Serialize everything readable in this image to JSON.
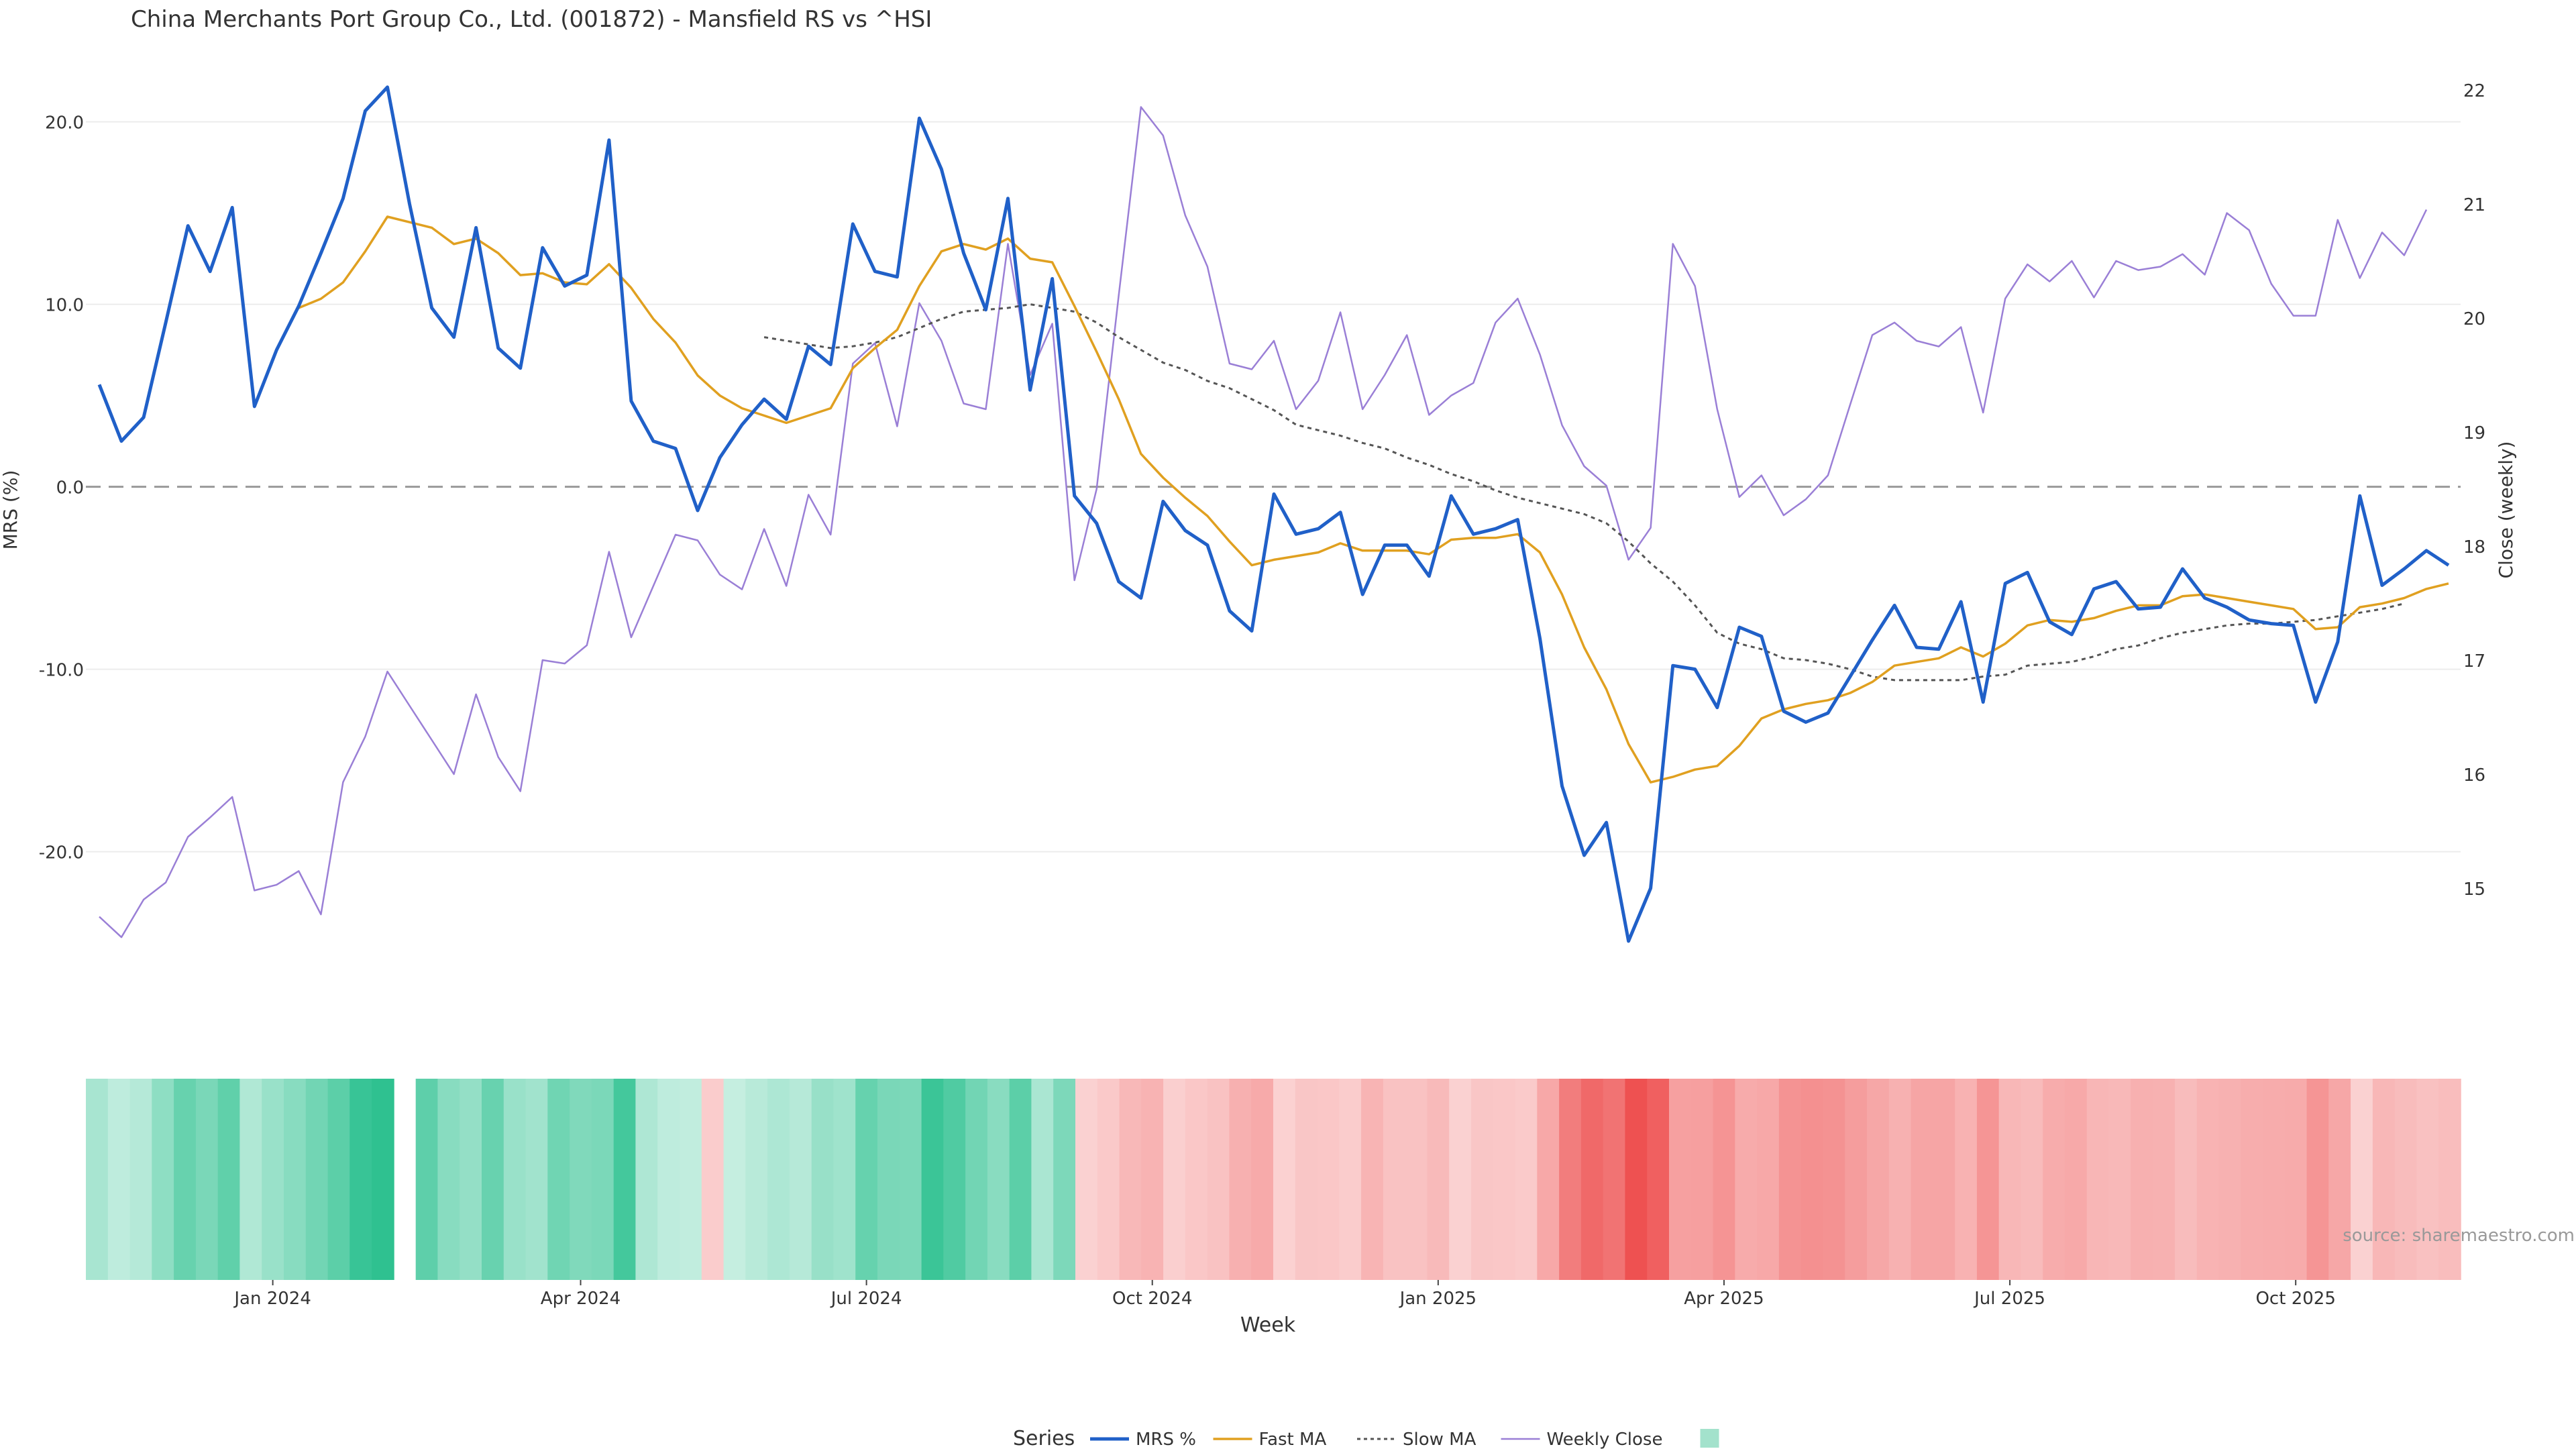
{
  "title": "China Merchants Port Group Co., Ltd. (001872) - Mansfield RS vs ^HSI",
  "source": "source: sharemaestro.com",
  "chart_data": {
    "type": "line",
    "title": "China Merchants Port Group Co., Ltd. (001872) - Mansfield RS vs ^HSI",
    "xlabel": "Week",
    "ylabel_left": "MRS (%)",
    "ylabel_right": "Close (weekly)",
    "ylim_left": [
      -27,
      23
    ],
    "ylim_right": [
      14.2,
      22.2
    ],
    "yticks_left": [
      "20.0",
      "10.0",
      "0.0",
      "-10.0",
      "-20.0"
    ],
    "yticks_left_values": [
      20,
      10,
      0,
      -10,
      -20
    ],
    "yticks_right": [
      "22",
      "21",
      "20",
      "19",
      "18",
      "17",
      "16",
      "15"
    ],
    "yticks_right_values": [
      22,
      21,
      20,
      19,
      18,
      17,
      16,
      15
    ],
    "xticks": [
      "Jan 2024",
      "Apr 2024",
      "Jul 2024",
      "Oct 2024",
      "Jan 2025",
      "Apr 2025",
      "Jul 2025",
      "Oct 2025"
    ],
    "xtick_weeks": [
      8,
      21,
      34,
      47,
      60,
      73,
      86,
      99
    ],
    "zero_line": true,
    "series": [
      {
        "name": "MRS %",
        "color": "#2060c8",
        "values": [
          5.6,
          2.5,
          3.8,
          9.0,
          14.3,
          11.8,
          15.3,
          4.4,
          7.5,
          9.9,
          12.8,
          15.8,
          20.6,
          21.9,
          15.5,
          9.8,
          8.2,
          14.2,
          7.6,
          6.5,
          13.1,
          11.0,
          11.6,
          19.0,
          4.7,
          2.5,
          2.1,
          -1.3,
          1.6,
          3.4,
          4.8,
          3.7,
          7.7,
          6.7,
          14.4,
          11.8,
          11.5,
          20.2,
          17.4,
          12.8,
          9.7,
          15.8,
          5.3,
          11.4,
          -0.5,
          -2.0,
          -5.2,
          -6.1,
          -0.8,
          -2.4,
          -3.2,
          -6.8,
          -7.9,
          -0.4,
          -2.6,
          -2.3,
          -1.4,
          -5.9,
          -3.2,
          -3.2,
          -4.9,
          -0.5,
          -2.6,
          -2.3,
          -1.8,
          -8.3,
          -16.4,
          -20.2,
          -18.4,
          -24.9,
          -22.0,
          -9.8,
          -10.0,
          -12.1,
          -7.7,
          -8.2,
          -12.3,
          -12.9,
          -12.4,
          -10.4,
          -8.4,
          -6.5,
          -8.8,
          -8.9,
          -6.3,
          -11.8,
          -5.3,
          -4.7,
          -7.4,
          -8.1,
          -5.6,
          -5.2,
          -6.7,
          -6.6,
          -4.5,
          -6.1,
          -6.6,
          -7.3,
          -7.5,
          -7.6,
          -11.8,
          -8.5,
          -0.5,
          -5.4,
          -4.5,
          -3.5,
          -4.3
        ]
      },
      {
        "name": "Fast MA",
        "color": "#e0a020",
        "start": 9,
        "values": [
          9.8,
          10.3,
          11.2,
          12.9,
          14.8,
          14.5,
          14.2,
          13.3,
          13.6,
          12.8,
          11.6,
          11.7,
          11.2,
          11.1,
          12.2,
          10.9,
          9.2,
          7.9,
          6.1,
          5.0,
          4.3,
          3.9,
          3.5,
          3.9,
          4.3,
          6.5,
          7.6,
          8.6,
          11.0,
          12.9,
          13.3,
          13.0,
          13.6,
          12.5,
          12.3,
          9.9,
          7.4,
          4.8,
          1.8,
          0.5,
          -0.6,
          -1.6,
          -3.0,
          -4.3,
          -4.0,
          -3.8,
          -3.6,
          -3.1,
          -3.5,
          -3.5,
          -3.5,
          -3.7,
          -2.9,
          -2.8,
          -2.8,
          -2.6,
          -3.6,
          -5.9,
          -8.8,
          -11.1,
          -14.1,
          -16.2,
          -15.9,
          -15.5,
          -15.3,
          -14.2,
          -12.7,
          -12.2,
          -11.9,
          -11.7,
          -11.3,
          -10.7,
          -9.8,
          -9.6,
          -9.4,
          -8.8,
          -9.3,
          -8.6,
          -7.6,
          -7.3,
          -7.4,
          -7.2,
          -6.8,
          -6.5,
          -6.5,
          -6.0,
          -5.9,
          -6.1,
          -6.3,
          -6.5,
          -6.7,
          -7.8,
          -7.7,
          -6.6,
          -6.4,
          -6.1,
          -5.6,
          -5.3
        ]
      },
      {
        "name": "Slow MA",
        "color": "#555555",
        "start": 30,
        "values": [
          8.2,
          8.0,
          7.8,
          7.6,
          7.7,
          7.9,
          8.2,
          8.7,
          9.2,
          9.6,
          9.7,
          9.8,
          10.0,
          9.8,
          9.6,
          9.0,
          8.2,
          7.5,
          6.8,
          6.4,
          5.8,
          5.4,
          4.8,
          4.2,
          3.4,
          3.1,
          2.8,
          2.4,
          2.1,
          1.6,
          1.2,
          0.7,
          0.3,
          -0.2,
          -0.6,
          -0.9,
          -1.2,
          -1.5,
          -2.0,
          -3.0,
          -4.2,
          -5.2,
          -6.5,
          -8.0,
          -8.6,
          -8.9,
          -9.4,
          -9.5,
          -9.7,
          -10.0,
          -10.4,
          -10.6,
          -10.6,
          -10.6,
          -10.6,
          -10.4,
          -10.3,
          -9.8,
          -9.7,
          -9.6,
          -9.3,
          -8.9,
          -8.7,
          -8.3,
          -8.0,
          -7.8,
          -7.6,
          -7.5,
          -7.5,
          -7.4,
          -7.3,
          -7.1,
          -6.9,
          -6.7,
          -6.4
        ]
      },
      {
        "name": "Weekly Close",
        "color": "#9a7fd6",
        "axis": "right",
        "values": [
          14.75,
          14.57,
          14.9,
          15.05,
          15.45,
          15.62,
          15.8,
          14.98,
          15.03,
          15.15,
          14.77,
          15.93,
          16.33,
          16.9,
          16.6,
          16.3,
          16.0,
          16.7,
          16.15,
          15.85,
          17.0,
          16.97,
          17.13,
          17.95,
          17.2,
          17.65,
          18.1,
          18.05,
          17.75,
          17.62,
          18.15,
          17.65,
          18.45,
          18.1,
          19.6,
          19.78,
          19.05,
          20.13,
          19.8,
          19.25,
          19.2,
          20.65,
          19.5,
          19.95,
          17.7,
          18.5,
          20.2,
          21.85,
          21.6,
          20.9,
          20.45,
          19.6,
          19.55,
          19.8,
          19.2,
          19.45,
          20.05,
          19.2,
          19.5,
          19.85,
          19.15,
          19.32,
          19.43,
          19.96,
          20.17,
          19.68,
          19.06,
          18.7,
          18.53,
          17.88,
          18.16,
          20.65,
          20.28,
          19.2,
          18.43,
          18.62,
          18.27,
          18.41,
          18.62,
          19.24,
          19.85,
          19.96,
          19.8,
          19.75,
          19.92,
          19.17,
          20.17,
          20.47,
          20.32,
          20.5,
          20.18,
          20.5,
          20.42,
          20.45,
          20.56,
          20.38,
          20.92,
          20.77,
          20.3,
          20.02,
          20.02,
          20.86,
          20.35,
          20.75,
          20.55,
          20.95
        ]
      }
    ],
    "heatmap": {
      "gap_after": 13,
      "values": [
        5.6,
        2.5,
        3.8,
        9.0,
        14.3,
        11.8,
        15.3,
        4.4,
        7.5,
        9.9,
        12.8,
        15.8,
        20.6,
        21.9,
        15.5,
        9.8,
        8.2,
        14.2,
        7.6,
        6.5,
        13.1,
        11.0,
        11.6,
        19.0,
        4.7,
        2.5,
        2.1,
        -1.3,
        1.6,
        3.4,
        4.8,
        3.7,
        7.7,
        6.7,
        14.4,
        11.8,
        11.5,
        20.2,
        17.4,
        12.8,
        9.7,
        15.8,
        5.3,
        11.4,
        -0.5,
        -2.0,
        -5.2,
        -6.1,
        -0.8,
        -2.4,
        -3.2,
        -6.8,
        -7.9,
        -0.4,
        -2.6,
        -2.3,
        -1.4,
        -5.9,
        -3.2,
        -3.2,
        -4.9,
        -0.5,
        -2.6,
        -2.3,
        -1.8,
        -8.3,
        -16.4,
        -20.2,
        -18.4,
        -24.9,
        -22.0,
        -9.8,
        -10.0,
        -12.1,
        -7.7,
        -8.2,
        -12.3,
        -12.9,
        -12.4,
        -10.4,
        -8.4,
        -6.5,
        -8.8,
        -8.9,
        -6.3,
        -11.8,
        -5.3,
        -4.7,
        -7.4,
        -8.1,
        -5.6,
        -5.2,
        -6.7,
        -6.6,
        -4.5,
        -6.1,
        -6.6,
        -7.3,
        -7.5,
        -7.6,
        -11.8,
        -8.5,
        -0.5,
        -5.4,
        -4.5,
        -3.5,
        -4.3
      ]
    },
    "legend": {
      "title": "Series",
      "placement": "bottom-center",
      "items": [
        "MRS %",
        "Fast MA",
        "Slow MA",
        "Weekly Close",
        ""
      ]
    },
    "colors": {
      "mrs": "#2060c8",
      "fast": "#e0a020",
      "slow": "#555555",
      "close": "#9a7fd6",
      "positive": "#2ec190",
      "negative": "#ee5050",
      "legend_swatch": "#a3e2cc"
    }
  }
}
